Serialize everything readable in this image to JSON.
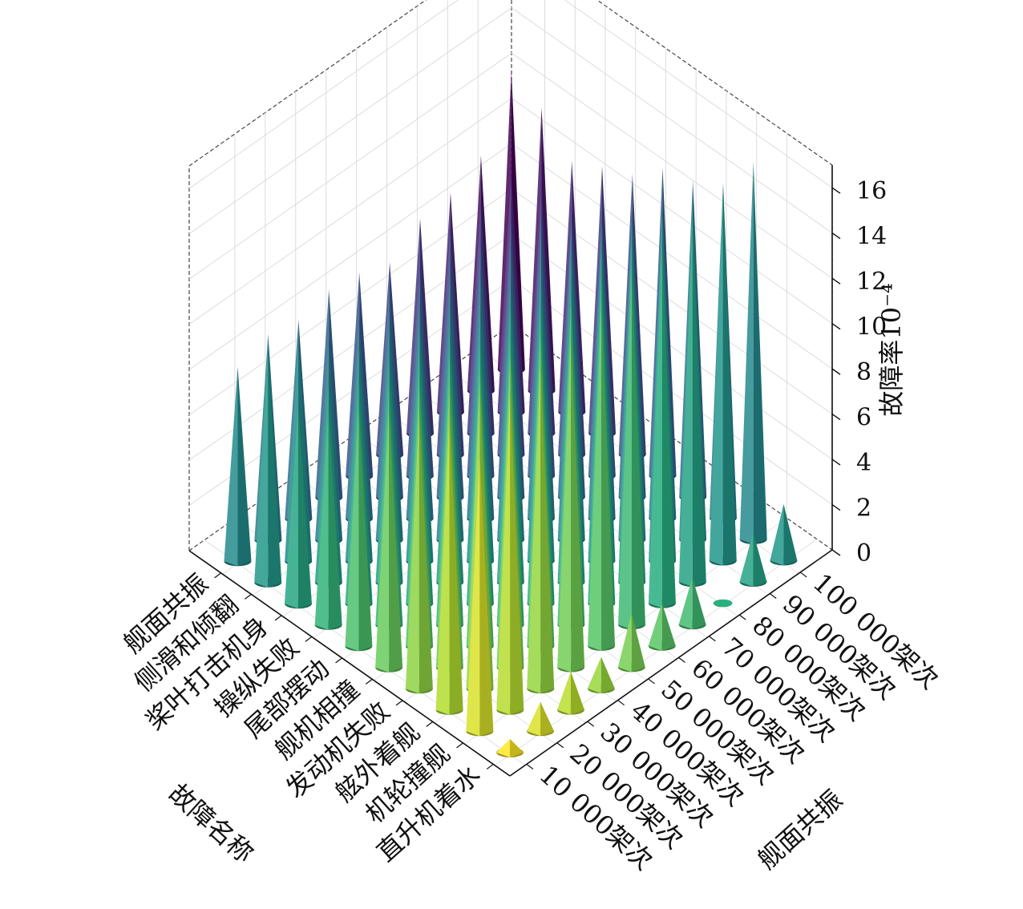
{
  "chart_data": {
    "type": "3d-cone",
    "title": "",
    "zlabel": "故障率10⁻⁴",
    "zlim": [
      0,
      17
    ],
    "z_ticks": [
      "0",
      "2",
      "4",
      "6",
      "8",
      "10",
      "12",
      "14",
      "16"
    ],
    "x_axis_title": "故障名称",
    "x_categories": [
      "直升机着水",
      "机轮撞舰",
      "舷外着舰",
      "发动机失败",
      "舰机相撞",
      "尾部摆动",
      "操纵失败",
      "桨叶打击机身",
      "侧滑和倾翻",
      "舰面共振"
    ],
    "y_axis_title": "舰面共振",
    "y_categories": [
      "10 000架次",
      "20 000架次",
      "30 000架次",
      "40 000架次",
      "50 000架次",
      "60 000架次",
      "70 000架次",
      "80 000架次",
      "90 000架次",
      "100 000架次"
    ],
    "grid": true,
    "colormap": [
      "#440154",
      "#472d7b",
      "#3b528b",
      "#2c728e",
      "#21918c",
      "#28ae80",
      "#5ec962",
      "#addc30",
      "#fde725"
    ],
    "values": [
      [
        0.6,
        12.3,
        13.1,
        12.4,
        11.5,
        10.6,
        9.5,
        8.8,
        10.3,
        8.6
      ],
      [
        1.3,
        14.1,
        13.4,
        12.7,
        11.8,
        10.8,
        10.0,
        8.9,
        9.9,
        9.1
      ],
      [
        1.7,
        14.5,
        13.8,
        12.4,
        12.0,
        11.2,
        10.2,
        9.6,
        8.9,
        8.8
      ],
      [
        1.4,
        14.8,
        14.0,
        12.7,
        11.6,
        11.0,
        10.5,
        9.7,
        8.9,
        9.2
      ],
      [
        2.4,
        15.3,
        14.4,
        13.2,
        12.4,
        11.2,
        10.4,
        9.6,
        9.5,
        9.0
      ],
      [
        1.9,
        15.7,
        14.7,
        13.1,
        12.6,
        11.4,
        10.9,
        10.2,
        9.2,
        8.5
      ],
      [
        2.1,
        15.9,
        15.3,
        13.9,
        13.0,
        11.9,
        11.2,
        10.4,
        10.1,
        9.5
      ],
      [
        0.0,
        16.2,
        15.7,
        14.1,
        13.3,
        12.1,
        11.5,
        10.6,
        10.3,
        9.7
      ],
      [
        2.2,
        16.5,
        15.2,
        13.3,
        12.7,
        11.3,
        10.8,
        10.9,
        10.6,
        10.4
      ],
      [
        2.5,
        16.7,
        14.8,
        14.0,
        13.6,
        12.4,
        11.8,
        11.1,
        12.5,
        13.2
      ]
    ]
  }
}
